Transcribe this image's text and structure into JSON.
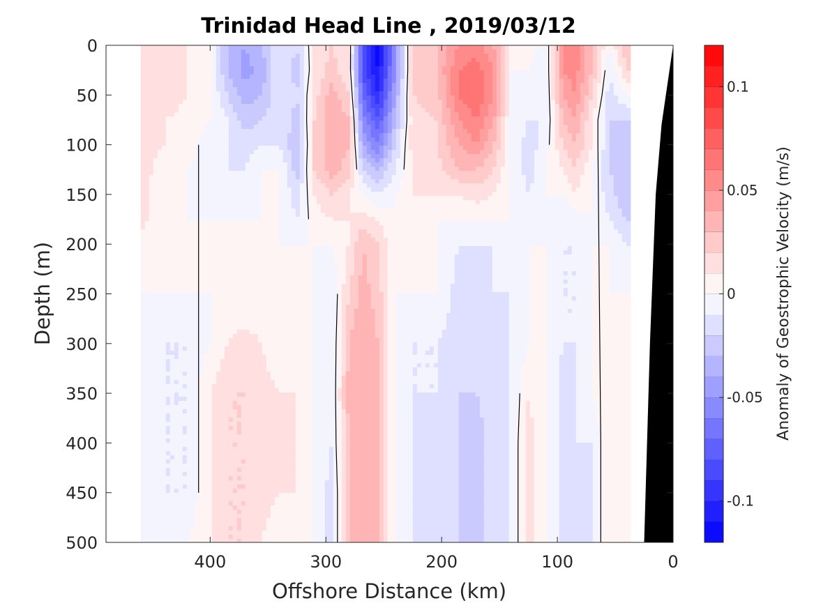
{
  "chart_data": {
    "type": "heatmap",
    "title": "Trinidad Head Line , 2019/03/12",
    "xlabel": "Offshore Distance (km)",
    "ylabel": "Depth (m)",
    "xlim": [
      490,
      0
    ],
    "ylim": [
      0,
      500
    ],
    "x_reversed": true,
    "y_reversed": true,
    "x_ticks": [
      400,
      300,
      200,
      100,
      0
    ],
    "y_ticks": [
      0,
      50,
      100,
      150,
      200,
      250,
      300,
      350,
      400,
      450,
      500
    ],
    "colorbar": {
      "label": "Anomaly of Geostrophic Velocity (m/s)",
      "range": [
        -0.12,
        0.12
      ],
      "levels": 24,
      "ticks": [
        0.1,
        0.05,
        0,
        -0.05,
        -0.1
      ],
      "tick_labels": [
        "0.1",
        "0.05",
        "0",
        "-0.05",
        "-0.1"
      ]
    },
    "depths": [
      0,
      25,
      50,
      75,
      100,
      125,
      150,
      175,
      200,
      250,
      300,
      350,
      400,
      450,
      500
    ],
    "stations": [
      460,
      440,
      420,
      400,
      385,
      370,
      355,
      340,
      325,
      310,
      295,
      280,
      268,
      255,
      240,
      225,
      205,
      185,
      170,
      155,
      140,
      125,
      110,
      95,
      85,
      70,
      55,
      40
    ],
    "velocity": [
      [
        0.015,
        0.015,
        0.015,
        0.015,
        0.015,
        0.015,
        0.015,
        0.015,
        0.005,
        0.0,
        0.0,
        0.0,
        0.0,
        0.0,
        0.0
      ],
      [
        0.01,
        0.02,
        0.02,
        0.01,
        0.01,
        0.005,
        0.0,
        0.0,
        0.0,
        0.0,
        -0.01,
        -0.01,
        -0.01,
        -0.01,
        -0.01
      ],
      [
        0.01,
        0.01,
        0.01,
        0.005,
        0.005,
        0.0,
        0.0,
        0.0,
        0.0,
        0.0,
        -0.01,
        -0.01,
        -0.01,
        -0.01,
        0.0
      ],
      [
        0.0,
        0.0,
        0.0,
        0.0,
        -0.005,
        -0.01,
        -0.005,
        0.0,
        0.0,
        0.0,
        0.0,
        0.01,
        0.01,
        0.01,
        0.01
      ],
      [
        -0.03,
        -0.03,
        -0.02,
        -0.01,
        -0.01,
        -0.01,
        -0.005,
        0.0,
        0.0,
        0.0,
        0.01,
        0.02,
        0.02,
        0.02,
        0.02
      ],
      [
        -0.04,
        -0.045,
        -0.035,
        -0.025,
        -0.015,
        -0.01,
        -0.005,
        0.0,
        0.0,
        0.0,
        0.015,
        0.02,
        0.02,
        0.02,
        0.02
      ],
      [
        -0.03,
        -0.035,
        -0.03,
        -0.02,
        -0.01,
        0.0,
        0.0,
        0.0,
        0.0,
        0.0,
        0.01,
        0.015,
        0.015,
        0.015,
        0.01
      ],
      [
        -0.01,
        -0.01,
        -0.01,
        -0.01,
        -0.01,
        0.0,
        0.0,
        0.0,
        0.0,
        0.0,
        0.0,
        0.01,
        0.01,
        0.01,
        0.0
      ],
      [
        -0.02,
        -0.025,
        -0.02,
        -0.025,
        -0.03,
        -0.025,
        -0.015,
        -0.01,
        0.0,
        0.01,
        0.01,
        0.01,
        0.01,
        0.01,
        0.01
      ],
      [
        0.01,
        0.01,
        0.015,
        0.02,
        0.02,
        0.02,
        0.01,
        0.005,
        0.0,
        0.0,
        0.0,
        0.0,
        0.0,
        0.0,
        0.0
      ],
      [
        0.02,
        0.025,
        0.035,
        0.04,
        0.04,
        0.035,
        0.02,
        0.01,
        0.0,
        -0.01,
        -0.01,
        -0.01,
        -0.01,
        -0.015,
        -0.015
      ],
      [
        0.01,
        0.01,
        0.02,
        0.03,
        0.03,
        0.025,
        0.01,
        0.01,
        0.01,
        0.02,
        0.03,
        0.035,
        0.03,
        0.03,
        0.03
      ],
      [
        -0.08,
        -0.085,
        -0.07,
        -0.055,
        -0.04,
        -0.02,
        0.0,
        0.015,
        0.03,
        0.035,
        0.04,
        0.04,
        0.04,
        0.04,
        0.04
      ],
      [
        -0.12,
        -0.11,
        -0.1,
        -0.08,
        -0.06,
        -0.03,
        -0.01,
        0.01,
        0.02,
        0.025,
        0.03,
        0.03,
        0.03,
        0.03,
        0.03
      ],
      [
        -0.05,
        -0.05,
        -0.04,
        -0.03,
        -0.02,
        -0.01,
        0.0,
        0.0,
        0.0,
        0.0,
        0.0,
        0.0,
        0.0,
        0.0,
        0.0
      ],
      [
        0.02,
        0.02,
        0.02,
        0.015,
        0.015,
        0.01,
        0.01,
        0.0,
        0.0,
        0.0,
        -0.01,
        -0.01,
        -0.01,
        -0.01,
        -0.01
      ],
      [
        0.03,
        0.03,
        0.025,
        0.02,
        0.02,
        0.015,
        0.01,
        0.0,
        0.0,
        0.0,
        -0.01,
        -0.01,
        -0.015,
        -0.015,
        -0.015
      ],
      [
        0.05,
        0.06,
        0.06,
        0.05,
        0.04,
        0.03,
        0.01,
        0.0,
        -0.01,
        -0.015,
        -0.015,
        -0.02,
        -0.02,
        -0.02,
        -0.02
      ],
      [
        0.055,
        0.065,
        0.07,
        0.06,
        0.05,
        0.03,
        0.015,
        0.0,
        -0.01,
        -0.015,
        -0.015,
        -0.02,
        -0.025,
        -0.025,
        -0.025
      ],
      [
        0.04,
        0.05,
        0.05,
        0.04,
        0.03,
        0.02,
        0.01,
        0.0,
        -0.01,
        -0.01,
        -0.015,
        -0.015,
        -0.015,
        -0.015,
        -0.015
      ],
      [
        0.01,
        0.0,
        0.0,
        0.0,
        0.0,
        0.0,
        0.0,
        0.0,
        -0.005,
        -0.01,
        -0.01,
        -0.01,
        -0.01,
        -0.01,
        -0.01
      ],
      [
        0.01,
        0.0,
        -0.005,
        -0.01,
        -0.015,
        -0.015,
        -0.01,
        -0.005,
        0.0,
        0.0,
        0.0,
        0.01,
        0.015,
        0.015,
        0.015
      ],
      [
        -0.01,
        -0.01,
        -0.01,
        -0.01,
        -0.005,
        0.0,
        0.0,
        0.0,
        0.0,
        0.0,
        0.0,
        0.0,
        0.0,
        0.0,
        0.0
      ],
      [
        0.05,
        0.05,
        0.04,
        0.03,
        0.02,
        0.01,
        0.0,
        -0.01,
        -0.01,
        -0.01,
        -0.01,
        -0.015,
        -0.015,
        -0.015,
        -0.015
      ],
      [
        0.06,
        0.055,
        0.05,
        0.04,
        0.03,
        0.02,
        0.01,
        -0.005,
        -0.01,
        -0.01,
        -0.01,
        -0.01,
        -0.01,
        -0.015,
        -0.015
      ],
      [
        0.03,
        0.03,
        0.02,
        0.01,
        0.01,
        0.0,
        0.0,
        0.0,
        0.0,
        0.0,
        0.0,
        0.0,
        -0.01,
        -0.01,
        -0.01
      ],
      [
        0.0,
        -0.01,
        -0.015,
        -0.02,
        -0.02,
        -0.02,
        -0.015,
        -0.01,
        0.0,
        0.0,
        0.01,
        0.01,
        0.01,
        0.01,
        0.01
      ],
      [
        0.03,
        0.02,
        0.0,
        -0.02,
        -0.03,
        -0.03,
        -0.03,
        -0.02,
        -0.01,
        0.0,
        0.0,
        0.0,
        0.0,
        0.0,
        0.0
      ]
    ],
    "bathymetry": [
      [
        0,
        0
      ],
      [
        5,
        40
      ],
      [
        10,
        80
      ],
      [
        15,
        150
      ],
      [
        20,
        300
      ],
      [
        25,
        500
      ]
    ],
    "bathymetry_color": "#000000",
    "colormap": {
      "negative": "#0000ff",
      "zero": "#ffffff",
      "positive": "#ff0000"
    },
    "grid": false,
    "legend": "colorbar-right"
  }
}
